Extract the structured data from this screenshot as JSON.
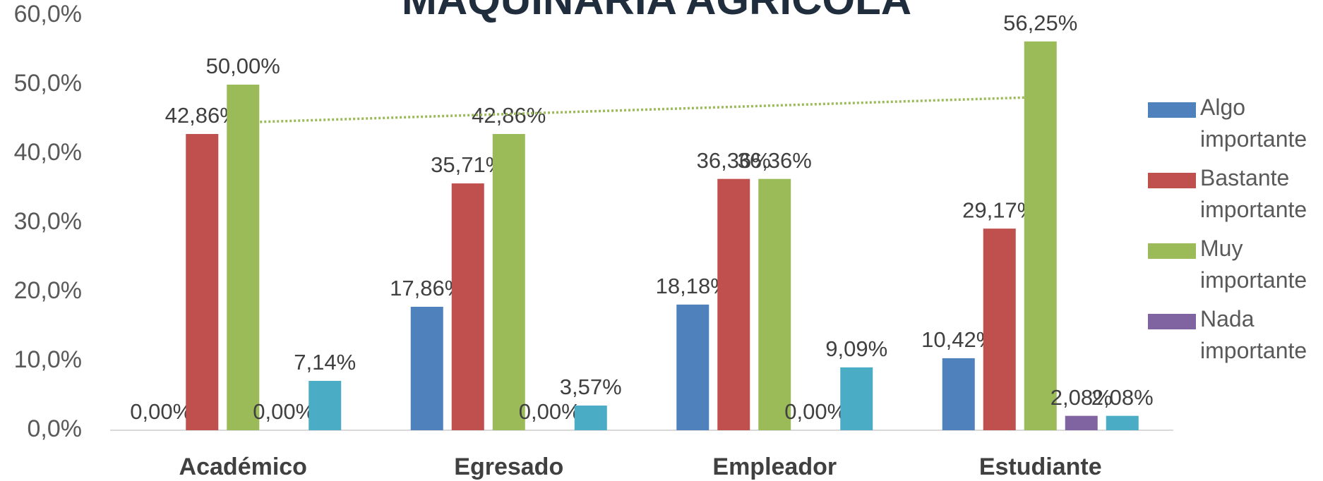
{
  "chart_data": {
    "type": "bar",
    "title": "MAQUINARIA AGRÍCOLA",
    "categories": [
      "Académico",
      "Egresado",
      "Empleador",
      "Estudiante"
    ],
    "series": [
      {
        "name": "Algo importante",
        "color": "#4f81bd",
        "values": [
          0,
          17.86,
          18.18,
          10.42
        ],
        "value_labels": [
          "0,00%",
          "17,86%",
          "18,18%",
          "10,42%"
        ]
      },
      {
        "name": "Bastante importante",
        "color": "#c0504d",
        "values": [
          42.86,
          35.71,
          36.36,
          29.17
        ],
        "value_labels": [
          "42,86%",
          "35,71%",
          "36,36%",
          "29,17%"
        ]
      },
      {
        "name": "Muy importante",
        "color": "#9bbb59",
        "values": [
          50,
          42.86,
          36.36,
          56.25
        ],
        "value_labels": [
          "50,00%",
          "42,86%",
          "36,36%",
          "56,25%"
        ],
        "trendline": "linear"
      },
      {
        "name": "Nada importante",
        "color": "#8064a2",
        "values": [
          0,
          0,
          0,
          2.08
        ],
        "value_labels": [
          "0,00%",
          "0,00%",
          "0,00%",
          "2,08%"
        ]
      },
      {
        "name": null,
        "color": "#4bacc6",
        "values": [
          7.14,
          3.57,
          9.09,
          2.08
        ],
        "value_labels": [
          "7,14%",
          "3,57%",
          "9,09%",
          "2,08%"
        ]
      }
    ],
    "ylim": [
      0,
      60
    ],
    "yticks": [
      {
        "value": 0,
        "label": "0,0%"
      },
      {
        "value": 10,
        "label": "10,0%"
      },
      {
        "value": 20,
        "label": "20,0%"
      },
      {
        "value": 30,
        "label": "30,0%"
      },
      {
        "value": 40,
        "label": "40,0%"
      },
      {
        "value": 50,
        "label": "50,0%"
      },
      {
        "value": 60,
        "label": "60,0%"
      }
    ],
    "grid": false,
    "legend": "right"
  }
}
